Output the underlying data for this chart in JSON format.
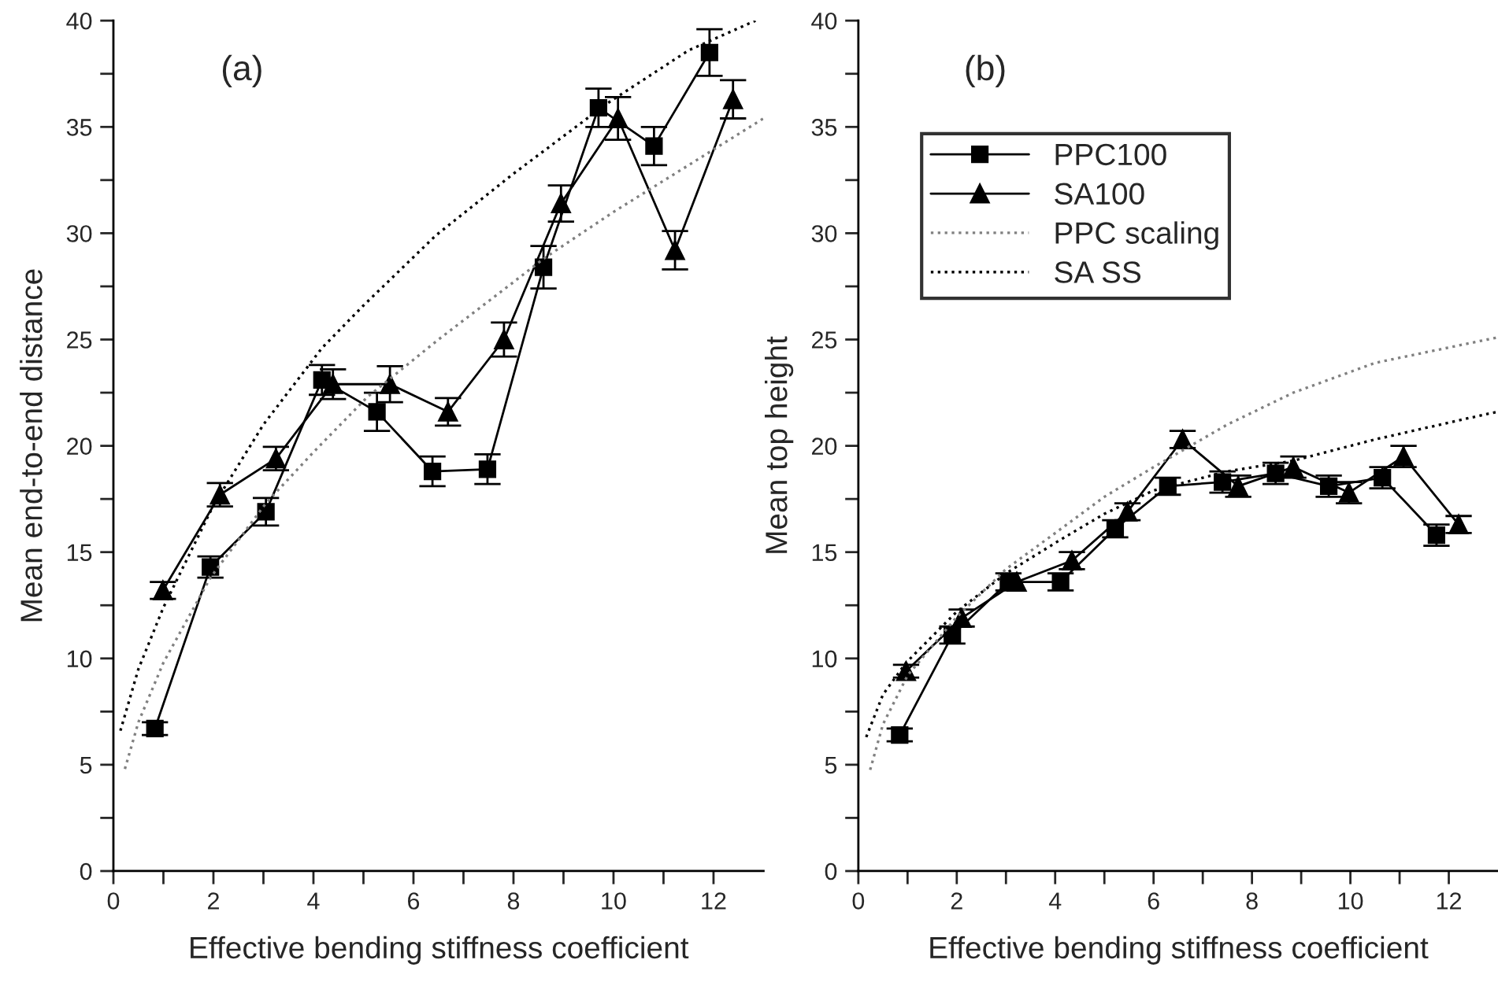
{
  "chart_data": [
    {
      "type": "line",
      "xlabel": "Effective bending stiffness coefficient",
      "ylabel": "Mean end-to-end distance",
      "annotations": [
        "(a)"
      ],
      "xlim": [
        0,
        13
      ],
      "ylim": [
        0,
        40
      ],
      "xticks": [
        0,
        {
          "value": 1,
          "label": null
        },
        2,
        {
          "value": 3,
          "label": null
        },
        4,
        {
          "value": 5,
          "label": null
        },
        6,
        {
          "value": 7,
          "label": null
        },
        8,
        {
          "value": 9,
          "label": null
        },
        10,
        {
          "value": 11,
          "label": null
        },
        12
      ],
      "yticks": [
        0,
        {
          "value": 2.5,
          "label": null
        },
        5,
        {
          "value": 7.5,
          "label": null
        },
        10,
        {
          "value": 12.5,
          "label": null
        },
        15,
        {
          "value": 17.5,
          "label": null
        },
        20,
        {
          "value": 22.5,
          "label": null
        },
        25,
        {
          "value": 27.5,
          "label": null
        },
        30,
        {
          "value": 32.5,
          "label": null
        },
        35,
        {
          "value": 37.5,
          "label": null
        },
        40
      ],
      "grid": false,
      "legend": false,
      "series": [
        {
          "color": "#000000",
          "marker": "square",
          "line_style": "solid",
          "x": [
            0.83,
            1.94,
            3.05,
            4.17,
            5.27,
            6.38,
            7.48,
            8.6,
            9.7,
            10.81,
            11.92
          ],
          "values": [
            6.7,
            14.3,
            16.9,
            23.1,
            21.6,
            18.8,
            18.9,
            28.4,
            35.9,
            34.1,
            38.5
          ],
          "errors": [
            0.3,
            0.5,
            0.65,
            0.7,
            0.9,
            0.7,
            0.7,
            1.0,
            0.9,
            0.9,
            1.1
          ]
        },
        {
          "color": "#000000",
          "marker": "triangle",
          "line_style": "solid",
          "x": [
            0.99,
            2.13,
            3.25,
            4.39,
            5.53,
            6.69,
            7.81,
            8.95,
            10.09,
            11.23,
            12.39
          ],
          "values": [
            13.2,
            17.7,
            19.4,
            22.9,
            22.9,
            21.6,
            25.0,
            31.4,
            35.4,
            29.2,
            36.3
          ],
          "errors": [
            0.4,
            0.55,
            0.55,
            0.7,
            0.85,
            0.65,
            0.8,
            0.85,
            1.0,
            0.9,
            0.9
          ]
        },
        {
          "color": "#808080",
          "marker": "none",
          "line_style": "dotted",
          "x": [
            0.23,
            0.5,
            1.0,
            1.94,
            3.05,
            4.0,
            5.08,
            6.5,
            8.0,
            8.6,
            10.0,
            11.5,
            13.0
          ],
          "values": [
            4.8,
            7.0,
            9.8,
            13.8,
            17.3,
            19.7,
            22.3,
            25.0,
            27.7,
            28.8,
            31.0,
            33.2,
            35.4
          ]
        },
        {
          "color": "#000000",
          "marker": "none",
          "line_style": "dotted",
          "x": [
            0.14,
            0.5,
            1.0,
            2.0,
            3.0,
            4.17,
            5.0,
            6.45,
            8.0,
            9.87,
            11.5,
            12.84
          ],
          "values": [
            6.6,
            9.5,
            12.4,
            17.2,
            21.0,
            24.6,
            26.6,
            29.9,
            32.8,
            36.1,
            38.6,
            40.0
          ]
        }
      ]
    },
    {
      "type": "line",
      "xlabel": "Effective bending stiffness coefficient",
      "ylabel": "Mean top height",
      "annotations": [
        "(b)"
      ],
      "xlim": [
        0,
        13
      ],
      "ylim": [
        0,
        40
      ],
      "xticks": [
        0,
        {
          "value": 1,
          "label": null
        },
        2,
        {
          "value": 3,
          "label": null
        },
        4,
        {
          "value": 5,
          "label": null
        },
        6,
        {
          "value": 7,
          "label": null
        },
        8,
        {
          "value": 9,
          "label": null
        },
        10,
        {
          "value": 11,
          "label": null
        },
        12
      ],
      "yticks": [
        0,
        {
          "value": 2.5,
          "label": null
        },
        5,
        {
          "value": 7.5,
          "label": null
        },
        10,
        {
          "value": 12.5,
          "label": null
        },
        15,
        {
          "value": 17.5,
          "label": null
        },
        20,
        {
          "value": 22.5,
          "label": null
        },
        25,
        {
          "value": 27.5,
          "label": null
        },
        30,
        {
          "value": 32.5,
          "label": null
        },
        35,
        {
          "value": 37.5,
          "label": null
        },
        40
      ],
      "grid": false,
      "legend": "top left",
      "series": [
        {
          "name": "PPC100",
          "color": "#000000",
          "marker": "square",
          "line_style": "solid",
          "x": [
            0.84,
            1.91,
            3.05,
            4.11,
            5.22,
            6.29,
            7.4,
            8.48,
            9.56,
            10.65,
            11.75
          ],
          "values": [
            6.4,
            11.1,
            13.6,
            13.6,
            16.1,
            18.1,
            18.3,
            18.7,
            18.1,
            18.5,
            15.8
          ],
          "errors": [
            0.3,
            0.4,
            0.4,
            0.4,
            0.4,
            0.4,
            0.5,
            0.5,
            0.5,
            0.5,
            0.5
          ]
        },
        {
          "name": "SA100",
          "color": "#000000",
          "marker": "triangle",
          "line_style": "solid",
          "x": [
            0.97,
            2.1,
            3.22,
            4.34,
            5.47,
            6.59,
            7.72,
            8.84,
            9.97,
            11.08,
            12.2
          ],
          "values": [
            9.4,
            11.9,
            13.6,
            14.6,
            16.9,
            20.3,
            18.1,
            19.0,
            17.8,
            19.5,
            16.3
          ],
          "errors": [
            0.3,
            0.4,
            null,
            0.4,
            0.4,
            0.4,
            0.5,
            0.5,
            0.5,
            0.5,
            0.4
          ]
        },
        {
          "name": "PPC scaling",
          "color": "#808080",
          "marker": "none",
          "line_style": "dotted",
          "x": [
            0.24,
            0.5,
            1.0,
            1.98,
            3.0,
            4.12,
            5.0,
            6.0,
            7.5,
            8.84,
            10.5,
            12.78,
            13.0
          ],
          "values": [
            4.76,
            6.9,
            9.2,
            11.9,
            14.2,
            16.1,
            17.6,
            19.0,
            21.0,
            22.5,
            23.9,
            25.0,
            25.1
          ]
        },
        {
          "name": "SA SS",
          "color": "#000000",
          "marker": "none",
          "line_style": "dotted",
          "x": [
            0.16,
            0.5,
            0.97,
            2.0,
            3.0,
            4.12,
            5.0,
            6.0,
            7.5,
            8.84,
            10.5,
            12.78,
            13.0
          ],
          "values": [
            6.3,
            8.3,
            9.8,
            12.2,
            14.0,
            15.6,
            16.8,
            17.9,
            18.8,
            19.3,
            20.3,
            21.5,
            21.6
          ]
        }
      ]
    }
  ]
}
